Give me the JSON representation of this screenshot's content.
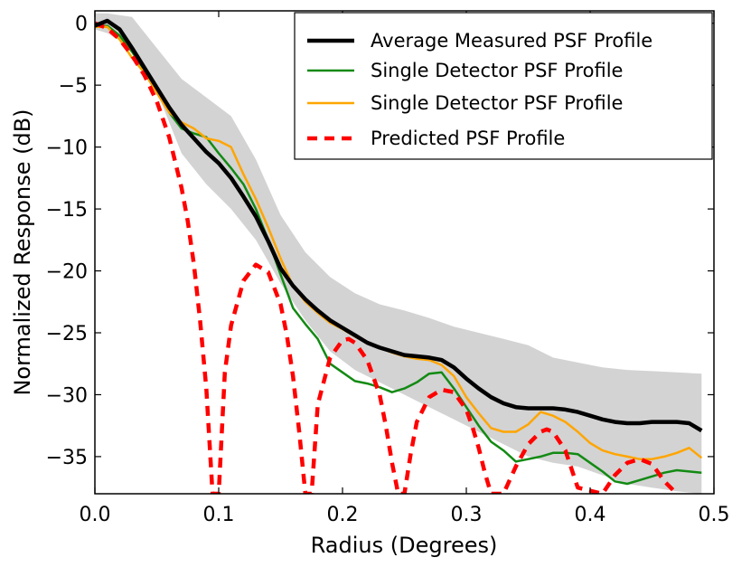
{
  "chart_data": {
    "type": "line",
    "title": "",
    "xlabel": "Radius (Degrees)",
    "ylabel": "Normalized Response (dB)",
    "xlim": [
      0.0,
      0.5
    ],
    "ylim": [
      -38,
      1
    ],
    "xticks": [
      0.0,
      0.1,
      0.2,
      0.3,
      0.4,
      0.5
    ],
    "xtick_labels": [
      "0.0",
      "0.1",
      "0.2",
      "0.3",
      "0.4",
      "0.5"
    ],
    "yticks": [
      0,
      -5,
      -10,
      -15,
      -20,
      -25,
      -30,
      -35
    ],
    "ytick_labels": [
      "0",
      "−5",
      "−10",
      "−15",
      "−20",
      "−25",
      "−30",
      "−35"
    ],
    "grid": false,
    "legend_position": "top-right",
    "band": {
      "color": "#d3d3d3",
      "x": [
        0.0,
        0.01,
        0.03,
        0.05,
        0.07,
        0.09,
        0.11,
        0.13,
        0.15,
        0.17,
        0.19,
        0.21,
        0.23,
        0.25,
        0.27,
        0.29,
        0.31,
        0.33,
        0.35,
        0.37,
        0.39,
        0.41,
        0.43,
        0.45,
        0.47,
        0.49
      ],
      "upper": [
        0.8,
        0.8,
        0.5,
        -2.0,
        -4.5,
        -6.0,
        -7.5,
        -11.0,
        -15.5,
        -18.5,
        -20.5,
        -21.8,
        -22.7,
        -23.2,
        -23.8,
        -24.5,
        -25.0,
        -25.5,
        -26.0,
        -27.0,
        -27.4,
        -27.8,
        -28.0,
        -28.1,
        -28.2,
        -28.3
      ],
      "lower": [
        -0.5,
        -0.8,
        -2.0,
        -5.5,
        -10.5,
        -13.0,
        -15.0,
        -17.5,
        -21.0,
        -24.0,
        -26.5,
        -28.0,
        -29.0,
        -30.0,
        -31.0,
        -32.0,
        -33.0,
        -34.0,
        -35.0,
        -35.5,
        -35.8,
        -36.5,
        -37.2,
        -37.5,
        -37.8,
        -38.0
      ]
    },
    "series": [
      {
        "name": "Average Measured PSF Profile",
        "color": "#000000",
        "style": "solid",
        "x": [
          0.0,
          0.01,
          0.02,
          0.03,
          0.04,
          0.05,
          0.06,
          0.07,
          0.08,
          0.09,
          0.1,
          0.11,
          0.12,
          0.13,
          0.14,
          0.15,
          0.16,
          0.17,
          0.18,
          0.19,
          0.2,
          0.21,
          0.22,
          0.23,
          0.24,
          0.25,
          0.26,
          0.27,
          0.28,
          0.29,
          0.3,
          0.31,
          0.32,
          0.33,
          0.34,
          0.35,
          0.36,
          0.37,
          0.38,
          0.39,
          0.4,
          0.41,
          0.42,
          0.43,
          0.44,
          0.45,
          0.46,
          0.47,
          0.48,
          0.49
        ],
        "y": [
          -0.2,
          0.2,
          -0.5,
          -2.0,
          -3.6,
          -5.2,
          -6.8,
          -8.2,
          -9.3,
          -10.4,
          -11.3,
          -12.5,
          -14.0,
          -15.6,
          -17.6,
          -19.8,
          -21.2,
          -22.3,
          -23.2,
          -24.0,
          -24.6,
          -25.2,
          -25.8,
          -26.2,
          -26.5,
          -26.8,
          -26.9,
          -27.0,
          -27.2,
          -27.8,
          -28.7,
          -29.5,
          -30.2,
          -30.7,
          -31.0,
          -31.1,
          -31.1,
          -31.1,
          -31.2,
          -31.4,
          -31.7,
          -32.0,
          -32.2,
          -32.3,
          -32.3,
          -32.2,
          -32.2,
          -32.2,
          -32.3,
          -32.9
        ]
      },
      {
        "name": "Single Detector PSF Profile",
        "color": "#138a13",
        "style": "solid",
        "x": [
          0.0,
          0.01,
          0.02,
          0.03,
          0.04,
          0.05,
          0.06,
          0.07,
          0.08,
          0.09,
          0.1,
          0.11,
          0.12,
          0.13,
          0.14,
          0.15,
          0.16,
          0.17,
          0.18,
          0.19,
          0.2,
          0.21,
          0.22,
          0.23,
          0.24,
          0.25,
          0.26,
          0.27,
          0.28,
          0.29,
          0.3,
          0.31,
          0.32,
          0.33,
          0.34,
          0.35,
          0.36,
          0.37,
          0.38,
          0.39,
          0.4,
          0.41,
          0.42,
          0.43,
          0.44,
          0.45,
          0.46,
          0.47,
          0.48,
          0.49
        ],
        "y": [
          -0.3,
          -0.2,
          -1.0,
          -2.3,
          -3.8,
          -5.4,
          -7.2,
          -8.5,
          -8.9,
          -9.2,
          -10.5,
          -11.7,
          -13.0,
          -15.0,
          -17.5,
          -20.3,
          -23.0,
          -24.3,
          -25.5,
          -27.5,
          -28.2,
          -28.9,
          -29.1,
          -29.4,
          -29.8,
          -29.5,
          -29.0,
          -28.3,
          -28.2,
          -29.5,
          -31.0,
          -32.5,
          -33.8,
          -34.5,
          -35.4,
          -35.2,
          -35.0,
          -34.7,
          -34.7,
          -34.8,
          -35.5,
          -36.2,
          -37.0,
          -37.2,
          -36.9,
          -36.6,
          -36.3,
          -36.1,
          -36.2,
          -36.3
        ]
      },
      {
        "name": "Single Detector PSF Profile",
        "color": "#ffa500",
        "style": "solid",
        "x": [
          0.0,
          0.01,
          0.02,
          0.03,
          0.04,
          0.05,
          0.06,
          0.07,
          0.08,
          0.09,
          0.1,
          0.11,
          0.12,
          0.13,
          0.14,
          0.15,
          0.16,
          0.17,
          0.18,
          0.19,
          0.2,
          0.21,
          0.22,
          0.23,
          0.24,
          0.25,
          0.26,
          0.27,
          0.28,
          0.29,
          0.3,
          0.31,
          0.32,
          0.33,
          0.34,
          0.35,
          0.36,
          0.37,
          0.38,
          0.39,
          0.4,
          0.41,
          0.42,
          0.43,
          0.44,
          0.45,
          0.46,
          0.47,
          0.48,
          0.49
        ],
        "y": [
          -0.3,
          -0.3,
          -1.3,
          -2.8,
          -4.0,
          -5.6,
          -7.2,
          -8.0,
          -8.5,
          -9.3,
          -9.5,
          -10.0,
          -12.2,
          -14.2,
          -16.5,
          -19.0,
          -21.2,
          -22.5,
          -23.4,
          -24.2,
          -24.7,
          -25.3,
          -25.8,
          -26.2,
          -26.6,
          -26.9,
          -27.1,
          -27.2,
          -27.6,
          -28.5,
          -30.2,
          -31.5,
          -32.7,
          -33.0,
          -33.0,
          -32.4,
          -31.4,
          -31.7,
          -32.2,
          -33.0,
          -33.9,
          -34.5,
          -34.8,
          -35.0,
          -35.2,
          -35.2,
          -35.0,
          -34.7,
          -34.3,
          -35.1
        ]
      },
      {
        "name": "Predicted PSF Profile",
        "color": "#ff0000",
        "style": "dashed",
        "x": [
          0.0,
          0.01,
          0.02,
          0.03,
          0.04,
          0.05,
          0.06,
          0.07,
          0.075,
          0.08,
          0.085,
          0.09,
          0.095,
          0.1,
          0.105,
          0.11,
          0.12,
          0.13,
          0.14,
          0.15,
          0.155,
          0.16,
          0.165,
          0.17,
          0.175,
          0.18,
          0.19,
          0.2,
          0.205,
          0.21,
          0.22,
          0.23,
          0.235,
          0.24,
          0.245,
          0.25,
          0.255,
          0.26,
          0.27,
          0.28,
          0.29,
          0.3,
          0.305,
          0.31,
          0.315,
          0.32,
          0.33,
          0.34,
          0.35,
          0.36,
          0.365,
          0.37,
          0.38,
          0.39,
          0.41,
          0.42,
          0.43,
          0.44,
          0.45,
          0.46,
          0.47
        ],
        "y": [
          0.0,
          -0.4,
          -1.3,
          -2.6,
          -4.2,
          -6.3,
          -9.2,
          -13.3,
          -16.0,
          -19.5,
          -24.0,
          -29.5,
          -38.0,
          -38.0,
          -28.2,
          -24.4,
          -20.8,
          -19.5,
          -20.1,
          -22.7,
          -25.2,
          -28.5,
          -33.0,
          -38.0,
          -38.0,
          -30.8,
          -27.0,
          -25.6,
          -25.5,
          -25.8,
          -27.2,
          -30.0,
          -32.5,
          -35.5,
          -38.0,
          -38.0,
          -34.8,
          -32.2,
          -30.2,
          -29.6,
          -29.8,
          -31.2,
          -32.6,
          -34.3,
          -36.3,
          -38.0,
          -38.0,
          -35.8,
          -34.0,
          -33.0,
          -32.8,
          -33.0,
          -34.5,
          -37.5,
          -38.0,
          -36.5,
          -35.5,
          -35.2,
          -35.6,
          -37.0,
          -38.0
        ]
      }
    ]
  }
}
